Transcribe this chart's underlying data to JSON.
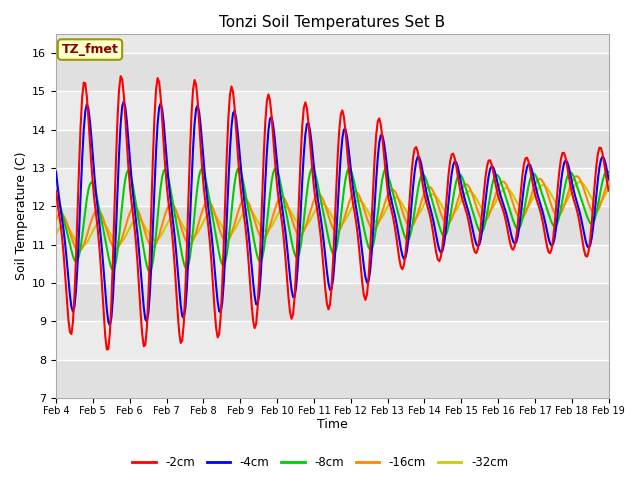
{
  "title": "Tonzi Soil Temperatures Set B",
  "xlabel": "Time",
  "ylabel": "Soil Temperature (C)",
  "ylim": [
    7.0,
    16.5
  ],
  "yticks": [
    7.0,
    8.0,
    9.0,
    10.0,
    11.0,
    12.0,
    13.0,
    14.0,
    15.0,
    16.0
  ],
  "fig_bg": "#ffffff",
  "plot_bg": "#e8e8e8",
  "grid_color": "#ffffff",
  "annotation_text": "TZ_fmet",
  "annotation_color": "#8b0000",
  "annotation_bg": "#ffffcc",
  "annotation_edge": "#999900",
  "series": [
    {
      "label": "-2cm",
      "color": "#ff0000",
      "lw": 1.5
    },
    {
      "label": "-4cm",
      "color": "#0000ff",
      "lw": 1.5
    },
    {
      "label": "-8cm",
      "color": "#00cc00",
      "lw": 1.5
    },
    {
      "label": "-16cm",
      "color": "#ff8800",
      "lw": 1.5
    },
    {
      "label": "-32cm",
      "color": "#cccc00",
      "lw": 1.5
    }
  ],
  "xtick_labels": [
    "Feb 4",
    "Feb 5",
    "Feb 6",
    "Feb 7",
    "Feb 8",
    "Feb 9",
    "Feb 10",
    "Feb 11",
    "Feb 12",
    "Feb 13",
    "Feb 14",
    "Feb 15",
    "Feb 16",
    "Feb 17",
    "Feb 18",
    "Feb 19"
  ],
  "n_days": 15
}
